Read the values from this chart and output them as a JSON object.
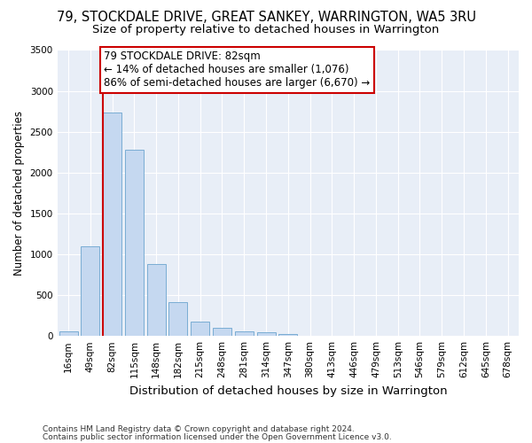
{
  "title1": "79, STOCKDALE DRIVE, GREAT SANKEY, WARRINGTON, WA5 3RU",
  "title2": "Size of property relative to detached houses in Warrington",
  "xlabel": "Distribution of detached houses by size in Warrington",
  "ylabel": "Number of detached properties",
  "footnote1": "Contains HM Land Registry data © Crown copyright and database right 2024.",
  "footnote2": "Contains public sector information licensed under the Open Government Licence v3.0.",
  "annotation_line1": "79 STOCKDALE DRIVE: 82sqm",
  "annotation_line2": "← 14% of detached houses are smaller (1,076)",
  "annotation_line3": "86% of semi-detached houses are larger (6,670) →",
  "bar_color": "#c5d8f0",
  "bar_edge_color": "#7aadd4",
  "vline_color": "#cc0000",
  "bg_color": "#e8eef7",
  "categories": [
    "16sqm",
    "49sqm",
    "82sqm",
    "115sqm",
    "148sqm",
    "182sqm",
    "215sqm",
    "248sqm",
    "281sqm",
    "314sqm",
    "347sqm",
    "380sqm",
    "413sqm",
    "446sqm",
    "479sqm",
    "513sqm",
    "546sqm",
    "579sqm",
    "612sqm",
    "645sqm",
    "678sqm"
  ],
  "values": [
    60,
    1100,
    2730,
    2280,
    880,
    415,
    175,
    95,
    55,
    45,
    25,
    0,
    0,
    0,
    0,
    0,
    0,
    0,
    0,
    0,
    0
  ],
  "vline_idx": 2,
  "ylim": [
    0,
    3500
  ],
  "yticks": [
    0,
    500,
    1000,
    1500,
    2000,
    2500,
    3000,
    3500
  ],
  "title1_fontsize": 10.5,
  "title2_fontsize": 9.5,
  "ylabel_fontsize": 8.5,
  "xlabel_fontsize": 9.5,
  "tick_fontsize": 7.5,
  "footnote_fontsize": 6.5,
  "ann_fontsize": 8.5
}
